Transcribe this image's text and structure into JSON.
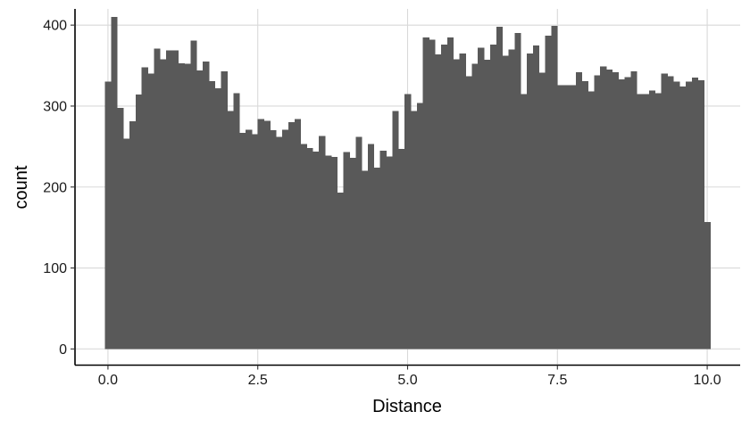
{
  "chart_data": {
    "type": "bar",
    "xlabel": "Distance",
    "ylabel": "count",
    "xlim": [
      -0.55,
      10.55
    ],
    "ylim": [
      -20,
      420
    ],
    "x_ticks": [
      0.0,
      2.5,
      5.0,
      7.5,
      10.0
    ],
    "x_tick_labels": [
      "0.0",
      "2.5",
      "5.0",
      "7.5",
      "10.0"
    ],
    "y_ticks": [
      0,
      100,
      200,
      300,
      400
    ],
    "y_tick_labels": [
      "0",
      "100",
      "200",
      "300",
      "400"
    ],
    "grid": true,
    "bar_color": "#595959",
    "gridline_color": "#d9d9d9",
    "bin_range": [
      -0.05,
      10.05
    ],
    "values": [
      330,
      410,
      298,
      260,
      281,
      314,
      348,
      340,
      371,
      358,
      369,
      369,
      353,
      352,
      381,
      344,
      355,
      331,
      322,
      343,
      294,
      316,
      267,
      271,
      265,
      284,
      282,
      270,
      262,
      271,
      280,
      284,
      253,
      248,
      244,
      263,
      239,
      237,
      193,
      243,
      236,
      262,
      220,
      253,
      224,
      245,
      238,
      294,
      247,
      315,
      294,
      304,
      385,
      382,
      364,
      376,
      385,
      358,
      365,
      337,
      352,
      372,
      357,
      376,
      398,
      362,
      370,
      390,
      315,
      365,
      375,
      341,
      387,
      399,
      326,
      326,
      326,
      342,
      331,
      318,
      338,
      349,
      345,
      342,
      333,
      336,
      343,
      315,
      315,
      319,
      316,
      340,
      337,
      330,
      324,
      330,
      335,
      332,
      157
    ]
  }
}
